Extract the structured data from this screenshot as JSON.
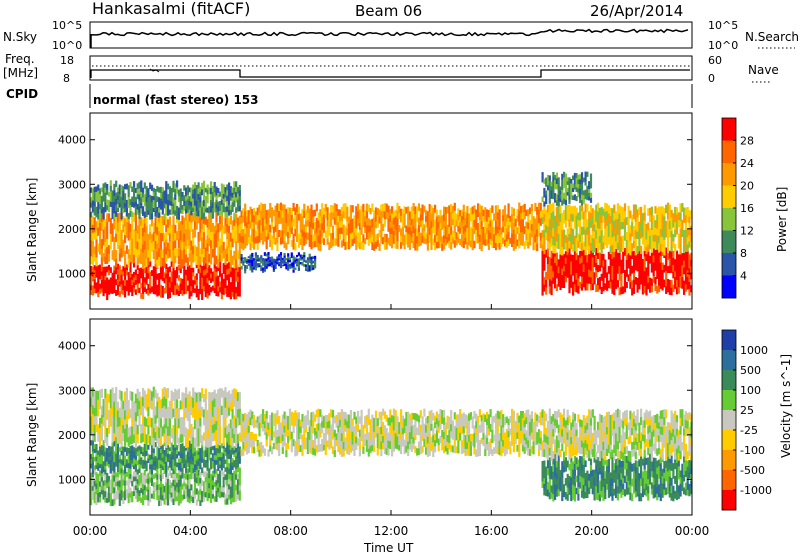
{
  "header": {
    "station": "Hankasalmi (fitACF)",
    "beam": "Beam 06",
    "date": "26/Apr/2014"
  },
  "status": {
    "nsky_label": "N.Sky",
    "nsky_ticks": [
      "10^5",
      "10^0"
    ],
    "nsearch_label": "N.Search",
    "nsearch_ticks": [
      "10^5",
      "10^0"
    ],
    "freq_label": "Freq.",
    "freq_unit": "[MHz]",
    "freq_ticks": [
      "18",
      "8"
    ],
    "nave_label": "Nave",
    "nave_ticks": [
      "60",
      "0"
    ],
    "cpid_label": "CPID",
    "cpid_text": "normal (fast stereo) 153"
  },
  "chart_data": [
    {
      "type": "heatmap",
      "name": "power",
      "ylabel": "Slant Range [km]",
      "ylim": [
        200,
        4600
      ],
      "yticks": [
        1000,
        2000,
        3000,
        4000
      ],
      "colorbar_label": "Power [dB]",
      "colorbar_ticks": [
        "28",
        "24",
        "20",
        "16",
        "12",
        "8",
        "4"
      ],
      "colors": [
        "#ff0000",
        "#ff6600",
        "#ff9900",
        "#ffcc00",
        "#88c53a",
        "#3e8a5a",
        "#2a55a8",
        "#0000ff"
      ],
      "bands": [
        {
          "t0": 0.0,
          "t1": 6.0,
          "r0": 500,
          "r1": 1200,
          "level": 0
        },
        {
          "t0": 0.0,
          "t1": 6.0,
          "r0": 1200,
          "r1": 2300,
          "level": 2
        },
        {
          "t0": 0.0,
          "t1": 6.0,
          "r0": 2300,
          "r1": 3000,
          "level": 5
        },
        {
          "t0": 6.0,
          "t1": 18.0,
          "r0": 1600,
          "r1": 2500,
          "level": 2
        },
        {
          "t0": 6.0,
          "t1": 9.0,
          "r0": 1100,
          "r1": 1400,
          "level": 6
        },
        {
          "t0": 18.0,
          "t1": 24.0,
          "r0": 600,
          "r1": 1500,
          "level": 0
        },
        {
          "t0": 18.0,
          "t1": 24.0,
          "r0": 1500,
          "r1": 2500,
          "level": 3
        },
        {
          "t0": 18.0,
          "t1": 20.0,
          "r0": 2600,
          "r1": 3200,
          "level": 5
        }
      ]
    },
    {
      "type": "heatmap",
      "name": "velocity",
      "xlabel": "Time UT",
      "ylabel": "Slant Range [km]",
      "xticks": [
        "00:00",
        "04:00",
        "08:00",
        "12:00",
        "16:00",
        "20:00",
        "00:00"
      ],
      "ylim": [
        200,
        4600
      ],
      "yticks": [
        1000,
        2000,
        3000,
        4000
      ],
      "colorbar_label": "Velocity [m s^-1]",
      "colorbar_ticks": [
        "1000",
        "500",
        "100",
        "25",
        "-25",
        "-100",
        "-500",
        "-1000"
      ],
      "colors": [
        "#1f3fa8",
        "#2c6e9e",
        "#3a8a5a",
        "#66cc33",
        "#c8c8c0",
        "#ffcc00",
        "#ff9900",
        "#ff6600",
        "#ff0000"
      ],
      "bands": [
        {
          "t0": 0.0,
          "t1": 6.0,
          "r0": 500,
          "r1": 1200,
          "level": 3
        },
        {
          "t0": 0.0,
          "t1": 6.0,
          "r0": 1200,
          "r1": 1800,
          "level": 2
        },
        {
          "t0": 0.0,
          "t1": 6.0,
          "r0": 1800,
          "r1": 3000,
          "level": 4
        },
        {
          "t0": 6.0,
          "t1": 18.0,
          "r0": 1600,
          "r1": 2500,
          "level": 4
        },
        {
          "t0": 18.0,
          "t1": 24.0,
          "r0": 600,
          "r1": 1500,
          "level": 2
        },
        {
          "t0": 18.0,
          "t1": 24.0,
          "r0": 1500,
          "r1": 2500,
          "level": 4
        }
      ]
    }
  ]
}
